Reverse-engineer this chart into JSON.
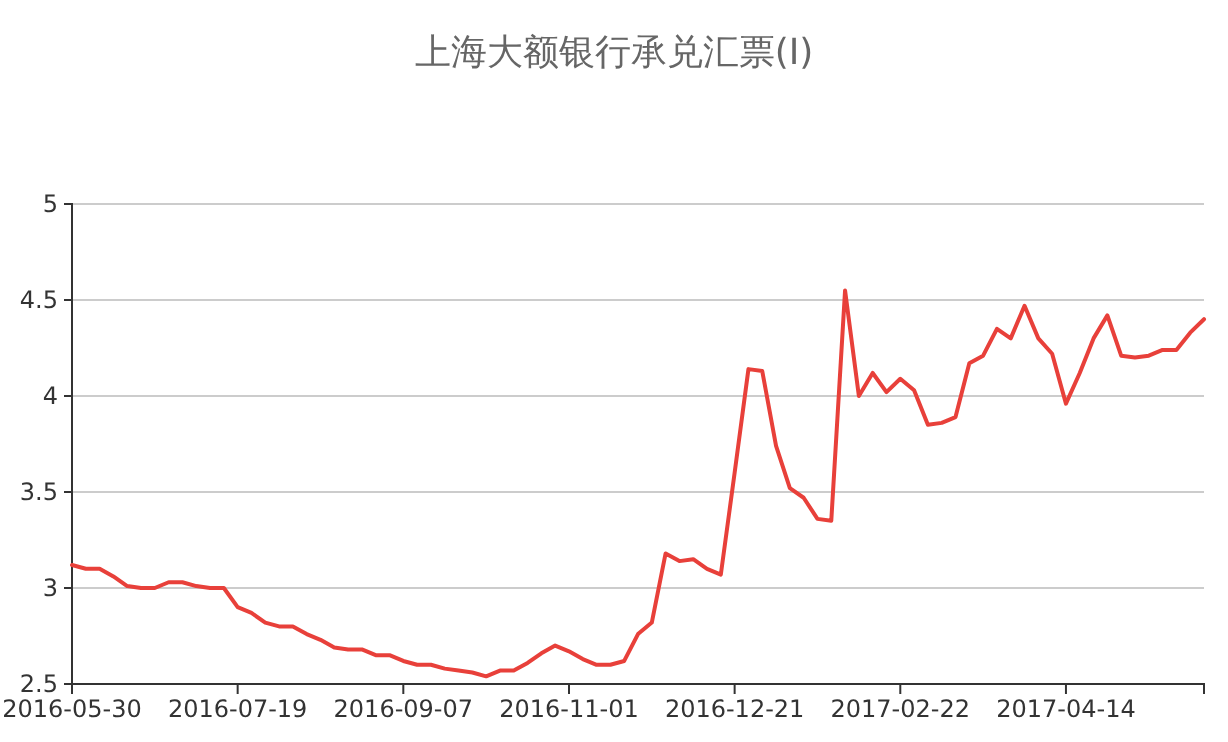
{
  "chart_data": {
    "type": "line",
    "title": "上海大额银行承兑汇票(Ⅰ)",
    "categories": [
      "2016-05-30",
      null,
      null,
      null,
      null,
      null,
      null,
      null,
      null,
      null,
      null,
      null,
      "2016-07-19",
      null,
      null,
      null,
      null,
      null,
      null,
      null,
      null,
      null,
      null,
      null,
      "2016-09-07",
      null,
      null,
      null,
      null,
      null,
      null,
      null,
      null,
      null,
      null,
      null,
      "2016-11-01",
      null,
      null,
      null,
      null,
      null,
      null,
      null,
      null,
      null,
      null,
      null,
      "2016-12-21",
      null,
      null,
      null,
      null,
      null,
      null,
      null,
      null,
      null,
      null,
      null,
      "2017-02-22",
      null,
      null,
      null,
      null,
      null,
      null,
      null,
      null,
      null,
      null,
      null,
      "2017-04-14",
      null,
      null,
      null,
      null,
      null,
      null,
      null,
      null,
      null,
      null
    ],
    "series": [
      {
        "color": "#e8403a",
        "values": [
          3.12,
          3.1,
          3.1,
          3.06,
          3.01,
          3.0,
          3.0,
          3.03,
          3.03,
          3.01,
          3.0,
          3.0,
          2.9,
          2.87,
          2.82,
          2.8,
          2.8,
          2.76,
          2.73,
          2.69,
          2.68,
          2.68,
          2.65,
          2.65,
          2.62,
          2.6,
          2.6,
          2.58,
          2.57,
          2.56,
          2.54,
          2.57,
          2.57,
          2.61,
          2.66,
          2.7,
          2.67,
          2.63,
          2.6,
          2.6,
          2.62,
          2.76,
          2.82,
          3.18,
          3.14,
          3.15,
          3.1,
          3.07,
          3.6,
          4.14,
          4.13,
          3.74,
          3.52,
          3.47,
          3.36,
          3.35,
          4.55,
          4.0,
          4.12,
          4.02,
          4.09,
          4.03,
          3.85,
          3.86,
          3.89,
          4.17,
          4.21,
          4.35,
          4.3,
          4.47,
          4.3,
          4.22,
          3.96,
          4.12,
          4.3,
          4.42,
          4.21,
          4.2,
          4.21,
          4.24,
          4.24,
          4.33,
          4.4
        ]
      }
    ],
    "ylim": [
      2.5,
      5
    ],
    "yticks": [
      2.5,
      3,
      3.5,
      4,
      4.5,
      5
    ],
    "grid": "y"
  }
}
